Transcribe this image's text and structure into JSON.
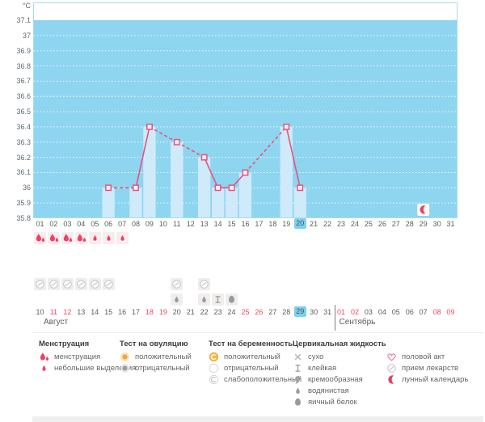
{
  "unit": "°C",
  "months": {
    "current": "Август",
    "next": "Сентябрь"
  },
  "chart_data": {
    "type": "line",
    "title": "",
    "ylabel": "°C",
    "ylim": [
      35.8,
      37.2
    ],
    "fill_top_value": 37.1,
    "y_ticks": [
      "37.1",
      "37",
      "36.9",
      "36.8",
      "36.7",
      "36.6",
      "36.5",
      "36.4",
      "36.3",
      "36.2",
      "36.1",
      "36",
      "35.9",
      "35.8"
    ],
    "x_days": [
      "01",
      "02",
      "03",
      "04",
      "05",
      "06",
      "07",
      "08",
      "09",
      "10",
      "11",
      "12",
      "13",
      "14",
      "15",
      "16",
      "17",
      "18",
      "19",
      "20",
      "21",
      "22",
      "23",
      "24",
      "25",
      "26",
      "27",
      "28",
      "29",
      "30",
      "31"
    ],
    "selected_day": 20,
    "moon_marker_day": 29,
    "bars_at_days": [
      6,
      8,
      9,
      11,
      13,
      14,
      15,
      16,
      19,
      20
    ],
    "series": [
      {
        "name": "temperature",
        "points": [
          {
            "day": 6,
            "value": 36.0
          },
          {
            "day": 8,
            "value": 36.0
          },
          {
            "day": 9,
            "value": 36.4
          },
          {
            "day": 11,
            "value": 36.3
          },
          {
            "day": 13,
            "value": 36.2
          },
          {
            "day": 14,
            "value": 36.0
          },
          {
            "day": 15,
            "value": 36.0
          },
          {
            "day": 16,
            "value": 36.1
          },
          {
            "day": 19,
            "value": 36.4
          },
          {
            "day": 20,
            "value": 36.0
          }
        ]
      }
    ]
  },
  "grid_rows": {
    "menstruation": {
      "heavy_days": [
        1,
        2,
        3,
        4
      ],
      "light_days": [
        5,
        6,
        7
      ]
    },
    "medication_days": [
      1,
      2,
      3,
      4,
      5,
      6,
      11,
      13
    ],
    "cervical_fluid": {
      "watery_days": [
        11,
        13
      ],
      "sticky_days": [
        14
      ],
      "eggwhite_days": [
        15
      ]
    }
  },
  "calendar_row2": {
    "aug_dates": [
      "10",
      "11",
      "12",
      "13",
      "14",
      "15",
      "16",
      "17",
      "18",
      "19",
      "20",
      "21",
      "22",
      "23",
      "24",
      "25",
      "26",
      "27",
      "28",
      "29",
      "30",
      "31"
    ],
    "sep_dates": [
      "01",
      "02",
      "03",
      "04",
      "05",
      "06",
      "07",
      "08",
      "09"
    ],
    "aug_weekend": [
      "11",
      "12",
      "18",
      "19",
      "25",
      "26"
    ],
    "sep_weekend": [
      "01",
      "02",
      "08",
      "09"
    ],
    "selected_aug": "29"
  },
  "legend": {
    "groups": [
      {
        "header": "Менструация",
        "items": [
          {
            "icon": "drop-heavy",
            "label": "менструация"
          },
          {
            "icon": "drop-light",
            "label": "небольшие выделения"
          }
        ]
      },
      {
        "header": "Тест на овуляцию",
        "items": [
          {
            "icon": "ovu-pos",
            "label": "положительный"
          },
          {
            "icon": "ovu-neg",
            "label": "отрицательный"
          }
        ]
      },
      {
        "header": "Тест на беременность",
        "items": [
          {
            "icon": "preg-pos",
            "label": "положительный"
          },
          {
            "icon": "preg-neg",
            "label": "отрицательный"
          },
          {
            "icon": "preg-weak",
            "label": "слабоположительный"
          }
        ]
      },
      {
        "header": "Цервикальная жидкость",
        "items": [
          {
            "icon": "dry",
            "label": "сухо"
          },
          {
            "icon": "sticky",
            "label": "клейкая"
          },
          {
            "icon": "creamy",
            "label": "кремообразная"
          },
          {
            "icon": "watery",
            "label": "водянистая"
          },
          {
            "icon": "eggwhite",
            "label": "яичный белок"
          }
        ]
      },
      {
        "header": "",
        "items": [
          {
            "icon": "heart",
            "label": "половой акт"
          },
          {
            "icon": "pill",
            "label": "прием лекарств"
          },
          {
            "icon": "moon",
            "label": "лунный календарь"
          }
        ]
      }
    ]
  },
  "colors": {
    "plot_bg": "#8ed5f0",
    "plot_border": "#a9dcf2",
    "bar": "#cfeafa",
    "line": "#e8537d",
    "marker_fill": "#fdf0f4",
    "menses": "#f23f66",
    "highlight": "#7fd0ee",
    "weekend_text": "#ee4b68",
    "moon": "#e64060",
    "gray_icon": "#9a9a9a"
  }
}
